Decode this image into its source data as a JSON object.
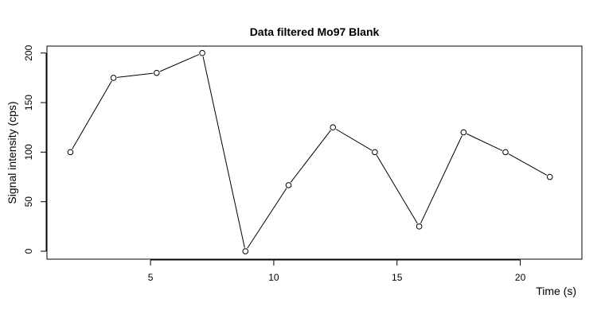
{
  "chart_data": {
    "type": "line",
    "title": "Data filtered Mo97 Blank",
    "xlabel": "Time (s)",
    "ylabel": "Signal intensity (cps)",
    "xlim": [
      0.8,
      22.5
    ],
    "ylim": [
      -8,
      207
    ],
    "xticks": [
      5,
      10,
      15,
      20
    ],
    "yticks": [
      0,
      50,
      100,
      150,
      200
    ],
    "grid": false,
    "markers": "open-circle",
    "series": [
      {
        "x": [
          1.75,
          3.5,
          5.25,
          7.1,
          8.85,
          10.6,
          12.4,
          14.1,
          15.9,
          17.7,
          19.4,
          21.2
        ],
        "y": [
          100,
          175,
          180,
          200,
          0,
          66.7,
          125,
          100,
          25,
          120,
          100,
          75
        ]
      }
    ]
  }
}
